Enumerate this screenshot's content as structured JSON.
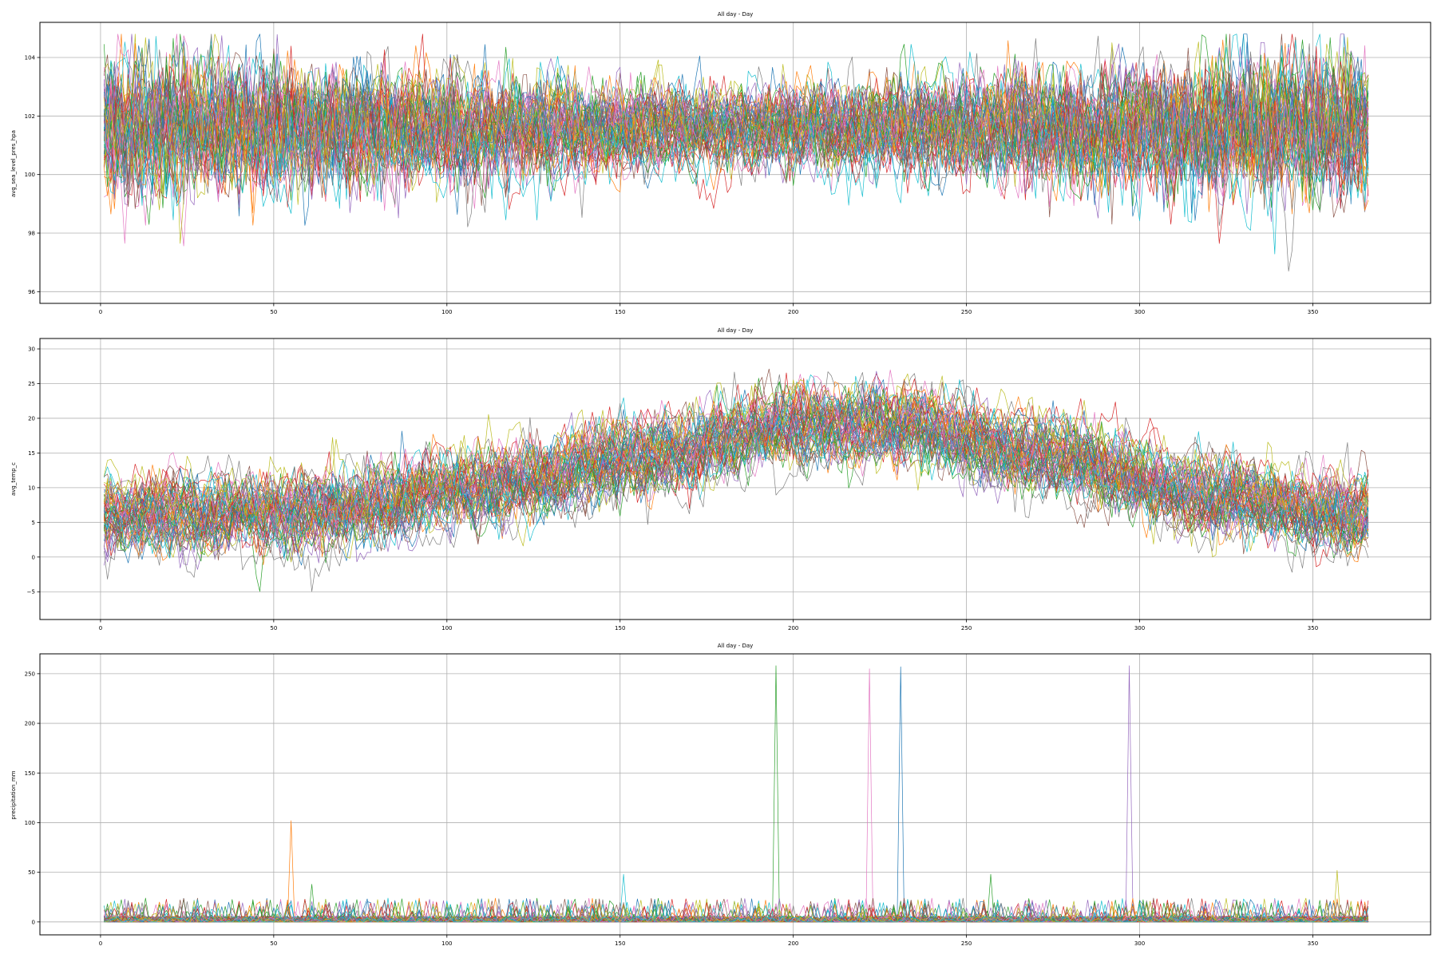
{
  "palette": [
    "#1f77b4",
    "#ff7f0e",
    "#2ca02c",
    "#d62728",
    "#9467bd",
    "#8c564b",
    "#e377c2",
    "#7f7f7f",
    "#bcbd22",
    "#17becf"
  ],
  "chart_data": [
    {
      "type": "line",
      "title": "All day - Day",
      "xlabel": "",
      "ylabel": "avg_sea_level_pres_hpa",
      "xlim": [
        -17.5,
        384
      ],
      "ylim": [
        95.6,
        105.2
      ],
      "xticks": [
        0,
        50,
        100,
        150,
        200,
        250,
        300,
        350
      ],
      "yticks": [
        96,
        98,
        100,
        102,
        104
      ],
      "grid": true,
      "series_count": 60,
      "x": {
        "start": 1,
        "end": 366,
        "step": 1
      },
      "series_model": {
        "baseline": 101.6,
        "noise_sd_seasonal": [
          1.0,
          0.55
        ],
        "min_observed": 95.9,
        "max_observed": 104.8
      },
      "peaks": []
    },
    {
      "type": "line",
      "title": "All day - Day",
      "xlabel": "",
      "ylabel": "avg_temp_c",
      "xlim": [
        -17.5,
        384
      ],
      "ylim": [
        -9,
        31.5
      ],
      "xticks": [
        0,
        50,
        100,
        150,
        200,
        250,
        300,
        350
      ],
      "yticks": [
        -5,
        0,
        5,
        10,
        15,
        20,
        25,
        30
      ],
      "grid": true,
      "series_count": 60,
      "x": {
        "start": 1,
        "end": 366,
        "step": 1
      },
      "series_model": {
        "mean_curve": [
          [
            1,
            6
          ],
          [
            60,
            6.5
          ],
          [
            110,
            10
          ],
          [
            160,
            15
          ],
          [
            200,
            19
          ],
          [
            230,
            19
          ],
          [
            270,
            15
          ],
          [
            320,
            9
          ],
          [
            366,
            6
          ]
        ],
        "min_observed": -7.5,
        "max_observed": 30
      },
      "peaks": []
    },
    {
      "type": "line",
      "title": "All day - Day",
      "xlabel": "",
      "ylabel": "precipitation_mm",
      "xlim": [
        -17.5,
        384
      ],
      "ylim": [
        -13,
        270
      ],
      "xticks": [
        0,
        50,
        100,
        150,
        200,
        250,
        300,
        350
      ],
      "yticks": [
        0,
        50,
        100,
        150,
        200,
        250
      ],
      "grid": true,
      "series_count": 60,
      "x": {
        "start": 1,
        "end": 366,
        "step": 1
      },
      "series_model": {
        "baseline": 0,
        "typical_max": 15
      },
      "peaks": [
        {
          "x": 55,
          "y": 102,
          "color": "#ff7f0e"
        },
        {
          "x": 195,
          "y": 258,
          "color": "#2ca02c"
        },
        {
          "x": 222,
          "y": 255,
          "color": "#e377c2"
        },
        {
          "x": 231,
          "y": 257,
          "color": "#1f77b4"
        },
        {
          "x": 297,
          "y": 258,
          "color": "#9467bd"
        },
        {
          "x": 357,
          "y": 52,
          "color": "#bcbd22"
        },
        {
          "x": 257,
          "y": 48,
          "color": "#2ca02c"
        },
        {
          "x": 61,
          "y": 38,
          "color": "#2ca02c"
        },
        {
          "x": 151,
          "y": 48,
          "color": "#17becf"
        }
      ]
    }
  ]
}
